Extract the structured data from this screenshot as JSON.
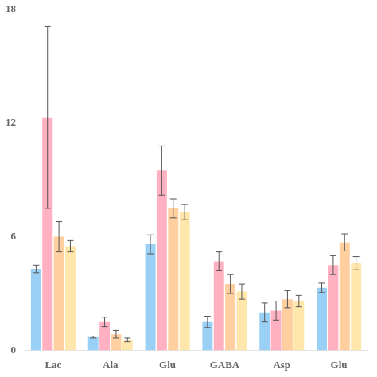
{
  "chart_data": {
    "type": "bar",
    "categories": [
      "Lac",
      "Ala",
      "Glu",
      "GABA",
      "Asp",
      "Glu"
    ],
    "series": [
      {
        "values": [
          4.3,
          0.7,
          5.6,
          1.5,
          2.0,
          3.3
        ],
        "errors": [
          0.2,
          0.05,
          0.5,
          0.3,
          0.5,
          0.25
        ]
      },
      {
        "values": [
          12.3,
          1.5,
          9.5,
          4.7,
          2.1,
          4.5
        ],
        "errors": [
          4.8,
          0.25,
          1.3,
          0.5,
          0.5,
          0.5
        ]
      },
      {
        "values": [
          6.0,
          0.85,
          7.5,
          3.5,
          2.7,
          5.7
        ],
        "errors": [
          0.8,
          0.2,
          0.5,
          0.5,
          0.45,
          0.45
        ]
      },
      {
        "values": [
          5.5,
          0.55,
          7.3,
          3.1,
          2.6,
          4.6
        ],
        "errors": [
          0.3,
          0.1,
          0.4,
          0.4,
          0.3,
          0.35
        ]
      }
    ],
    "ylim": [
      0,
      18
    ],
    "yticks": [
      0,
      6,
      12,
      18
    ],
    "grid": false
  }
}
